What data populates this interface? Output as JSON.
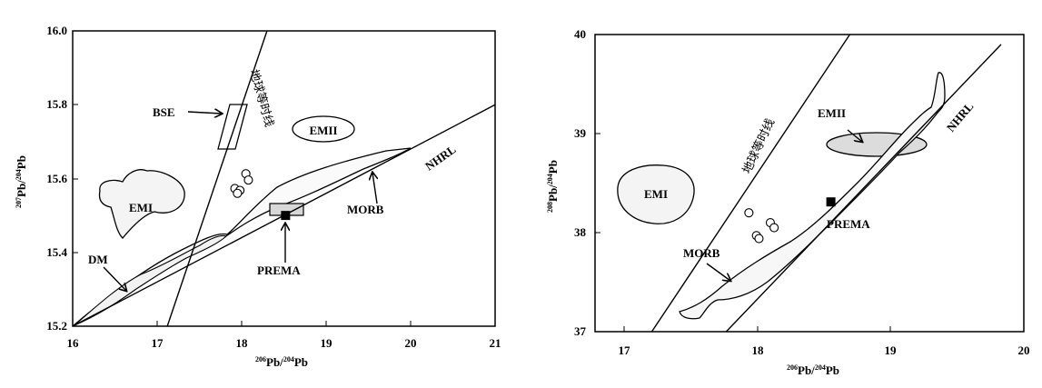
{
  "chart_data": [
    {
      "type": "scatter",
      "xlabel": "206Pb/204Pb",
      "ylabel": "207Pb/204Pb",
      "xlim": [
        16,
        21
      ],
      "ylim": [
        15.2,
        16.0
      ],
      "x_ticks": [
        "16",
        "17",
        "18",
        "19",
        "20",
        "21"
      ],
      "y_ticks": [
        "15.2",
        "15.4",
        "15.6",
        "15.8",
        "16.0"
      ],
      "isochron_label": "地球等时线",
      "isochron": [
        [
          17.12,
          15.2
        ],
        [
          18.3,
          16.0
        ]
      ],
      "nhrl": [
        [
          16.0,
          15.2
        ],
        [
          21.0,
          15.8
        ]
      ],
      "samples": [
        [
          17.92,
          15.573
        ],
        [
          17.98,
          15.568
        ],
        [
          17.95,
          15.56
        ],
        [
          18.05,
          15.613
        ],
        [
          18.08,
          15.596
        ]
      ],
      "prema": [
        18.52,
        15.5
      ],
      "labels": {
        "bse": "BSE",
        "emii": "EMII",
        "emi": "EMI",
        "dm": "DM",
        "morb": "MORB",
        "prema": "PREMA",
        "nhrl": "NHRL"
      }
    },
    {
      "type": "scatter",
      "xlabel": "206Pb/204Pb",
      "ylabel": "208Pb/204Pb",
      "xlim": [
        16.6,
        20
      ],
      "ylim": [
        37,
        40
      ],
      "x_ticks": [
        "17",
        "18",
        "19",
        "20"
      ],
      "y_ticks": [
        "37",
        "38",
        "39",
        "40"
      ],
      "isochron_label": "地球等时线",
      "isochron": [
        [
          17.05,
          37.0
        ],
        [
          18.62,
          40.0
        ]
      ],
      "nhrl": [
        [
          17.64,
          37.0
        ],
        [
          19.82,
          39.9
        ]
      ],
      "samples": [
        [
          17.82,
          38.2
        ],
        [
          17.88,
          37.97
        ],
        [
          17.9,
          37.94
        ],
        [
          17.99,
          38.1
        ],
        [
          18.02,
          38.05
        ]
      ],
      "prema": [
        18.47,
        38.31
      ],
      "labels": {
        "emii": "EMII",
        "emi": "EMI",
        "morb": "MORB",
        "prema": "PREMA",
        "nhrl": "NHRL"
      }
    }
  ]
}
